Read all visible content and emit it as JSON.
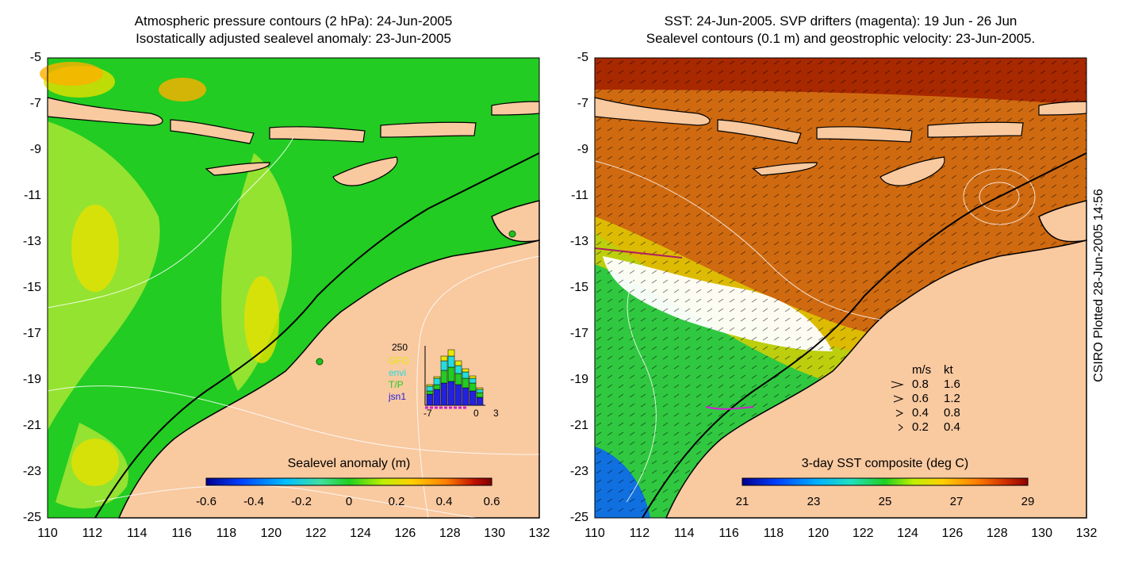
{
  "left_panel": {
    "title_line1": "Atmospheric pressure contours (2 hPa): 24-Jun-2005",
    "title_line2": "Isostatically adjusted sealevel anomaly: 23-Jun-2005",
    "colorbar_title": "Sealevel anomaly (m)",
    "colorbar_ticks": [
      "-0.6",
      "-0.4",
      "-0.2",
      "0",
      "0.2",
      "0.4",
      "0.6"
    ],
    "histogram": {
      "count_label": "250",
      "sources": [
        {
          "name": "GFO",
          "color": "#e8e800"
        },
        {
          "name": "envi",
          "color": "#22dddd"
        },
        {
          "name": "T/P",
          "color": "#22cc22"
        },
        {
          "name": "jsn1",
          "color": "#2222dd"
        }
      ],
      "x_ticks": [
        "-7",
        "0",
        "3"
      ]
    }
  },
  "right_panel": {
    "title_line1": "SST: 24-Jun-2005. SVP drifters (magenta): 19 Jun - 26 Jun",
    "title_line2": "Sealevel contours (0.1 m) and geostrophic velocity: 23-Jun-2005.",
    "colorbar_title": "3-day SST composite (deg C)",
    "colorbar_ticks": [
      "21",
      "23",
      "25",
      "27",
      "29"
    ],
    "velocity_legend": {
      "header_ms": "m/s",
      "header_kt": "kt",
      "rows": [
        {
          "ms": "0.8",
          "kt": "1.6"
        },
        {
          "ms": "0.6",
          "kt": "1.2"
        },
        {
          "ms": "0.4",
          "kt": "0.8"
        },
        {
          "ms": "0.2",
          "kt": "0.4"
        }
      ]
    }
  },
  "axes": {
    "y_ticks": [
      "-5",
      "-7",
      "-9",
      "-11",
      "-13",
      "-15",
      "-17",
      "-19",
      "-21",
      "-23",
      "-25"
    ],
    "x_ticks": [
      "110",
      "112",
      "114",
      "116",
      "118",
      "120",
      "122",
      "124",
      "126",
      "128",
      "130",
      "132"
    ]
  },
  "credit": "CSIRO Plotted 28-Jun-2005 14:56",
  "colors": {
    "land": "#f9c9a0",
    "sla_scale": [
      "#000090",
      "#0040ff",
      "#00c0ff",
      "#40e0a0",
      "#20d020",
      "#c0f000",
      "#ffd000",
      "#ff8000",
      "#c01000",
      "#800000"
    ],
    "sst_scale": [
      "#000090",
      "#0040ff",
      "#00b0ff",
      "#20e0c0",
      "#20d020",
      "#c0f000",
      "#ffd000",
      "#ff8000",
      "#d03000",
      "#900000"
    ]
  }
}
